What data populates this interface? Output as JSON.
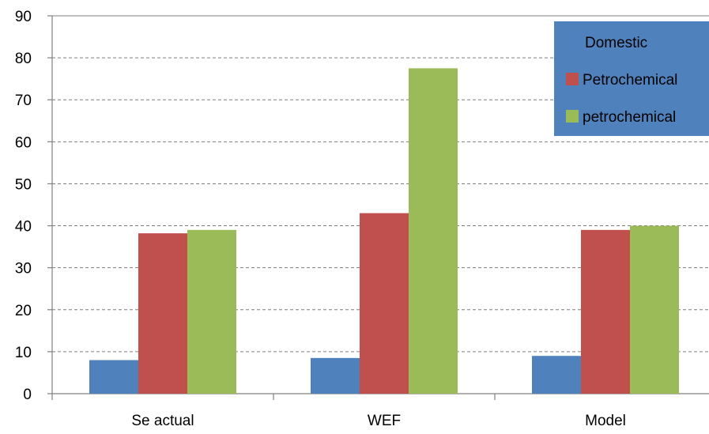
{
  "chart_data": {
    "type": "bar",
    "categories": [
      "Se actual",
      "WEF",
      "Model"
    ],
    "series": [
      {
        "name": "Domestic",
        "values": [
          8,
          8.5,
          9
        ],
        "color": "#4F81BD"
      },
      {
        "name": "Petrochemical",
        "values": [
          38.2,
          43,
          39
        ],
        "color": "#C0504D"
      },
      {
        "name": "petrochemical",
        "values": [
          39,
          77.5,
          40
        ],
        "color": "#9BBB59"
      }
    ],
    "ylim": [
      0,
      90
    ],
    "yticks": [
      0,
      10,
      20,
      30,
      40,
      50,
      60,
      70,
      80,
      90
    ],
    "grid": true,
    "legend": {
      "position": "top-right",
      "background": "#4F81BD"
    }
  }
}
